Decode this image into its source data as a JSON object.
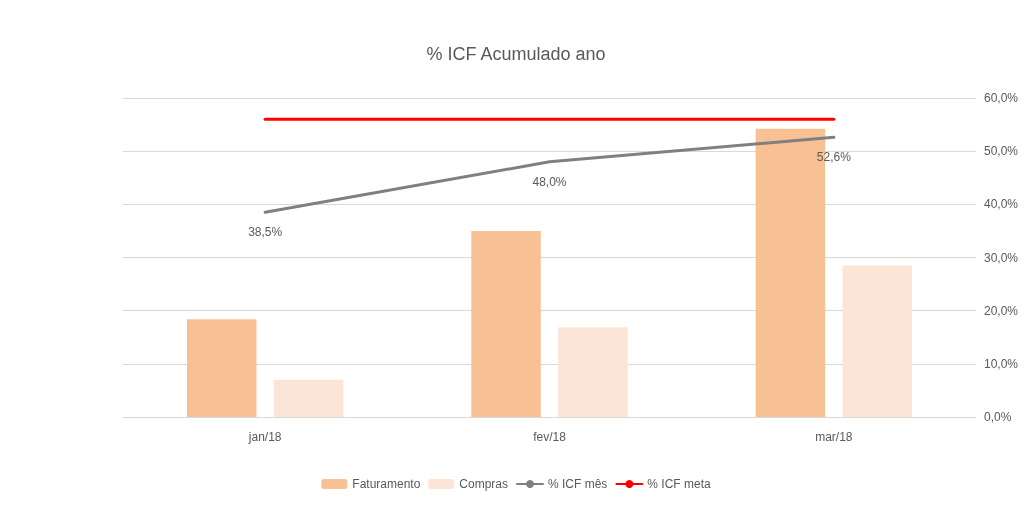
{
  "chart_data": {
    "type": "bar",
    "title": "% ICF Acumulado ano",
    "categories": [
      "jan/18",
      "fev/18",
      "mar/18"
    ],
    "series": [
      {
        "name": "Faturamento",
        "color": "#f8c194",
        "axis": "y2",
        "values": [
          18.4,
          35.0,
          54.2
        ]
      },
      {
        "name": "Compras",
        "color": "#fce4d6",
        "axis": "y2",
        "values": [
          7.0,
          16.9,
          28.5
        ]
      },
      {
        "name": "% ICF mês",
        "type": "line",
        "axis": "y2",
        "color": "#808080",
        "values": [
          38.5,
          48.0,
          52.6
        ],
        "value_labels": [
          "38,5%",
          "48,0%",
          "52,6%"
        ]
      },
      {
        "name": "% ICF meta",
        "type": "line",
        "axis": "y2",
        "color": "#ff0000",
        "values": [
          56,
          56,
          56
        ]
      }
    ],
    "y2lim": [
      0,
      60
    ],
    "y2ticks": [
      {
        "value": 0,
        "label": "0,0%"
      },
      {
        "value": 10,
        "label": "10,0%"
      },
      {
        "value": 20,
        "label": "20,0%"
      },
      {
        "value": 30,
        "label": "30,0%"
      },
      {
        "value": 40,
        "label": "40,0%"
      },
      {
        "value": 50,
        "label": "50,0%"
      },
      {
        "value": 60,
        "label": "60,0%"
      }
    ],
    "grid": "y",
    "legend": "bottom",
    "marker": "none",
    "line_style": "solid"
  }
}
